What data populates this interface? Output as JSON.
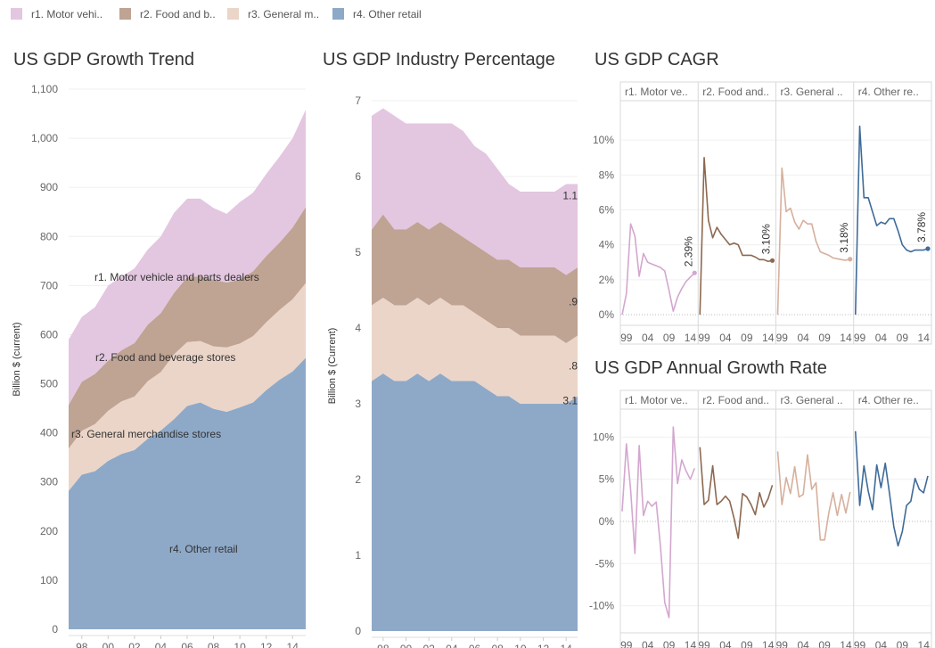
{
  "legend": [
    {
      "label": "r1. Motor vehi..",
      "color": "#e3c6e0"
    },
    {
      "label": "r2. Food and b..",
      "color": "#bfa393"
    },
    {
      "label": "r3. General m..",
      "color": "#ebd5c8"
    },
    {
      "label": "r4. Other retail",
      "color": "#8ea9c8"
    }
  ],
  "titles": {
    "trend": "US GDP Growth Trend",
    "pct": "US GDP Industry Percentage",
    "cagr": "US GDP CAGR",
    "agr": "US GDP Annual Growth Rate"
  },
  "chart_data": [
    {
      "type": "area",
      "stacked": true,
      "title": "US GDP Growth Trend",
      "ylabel": "Billion $ (current)",
      "ylim": [
        0,
        1100
      ],
      "yticks": [
        0,
        100,
        200,
        300,
        400,
        500,
        600,
        700,
        800,
        900,
        1000,
        1100
      ],
      "ytick_labels": [
        "0",
        "100",
        "200",
        "300",
        "400",
        "500",
        "600",
        "700",
        "800",
        "900",
        "1,000",
        "1,100"
      ],
      "x": [
        1997,
        1998,
        1999,
        2000,
        2001,
        2002,
        2003,
        2004,
        2005,
        2006,
        2007,
        2008,
        2009,
        2010,
        2011,
        2012,
        2013,
        2014,
        2015
      ],
      "xtick_values": [
        1998,
        2000,
        2002,
        2004,
        2006,
        2008,
        2010,
        2012,
        2014
      ],
      "xtick_labels": [
        "98",
        "00",
        "02",
        "04",
        "06",
        "08",
        "10",
        "12",
        "14"
      ],
      "series_labels": [
        "r1. Motor vehicle and parts dealers",
        "r2. Food and beverage stores",
        "r3. General merchandise stores",
        "r4. Other retail"
      ],
      "cumulative": [
        [
          282,
          315,
          322,
          343,
          357,
          365,
          388,
          405,
          428,
          455,
          462,
          449,
          443,
          452,
          462,
          487,
          508,
          525,
          553
        ],
        [
          368,
          404,
          418,
          445,
          464,
          474,
          505,
          524,
          560,
          585,
          587,
          576,
          574,
          582,
          597,
          625,
          650,
          672,
          705
        ],
        [
          457,
          504,
          520,
          547,
          568,
          583,
          620,
          644,
          685,
          717,
          719,
          712,
          706,
          712,
          729,
          760,
          787,
          818,
          860
        ],
        [
          590,
          636,
          656,
          700,
          718,
          735,
          773,
          800,
          848,
          877,
          877,
          858,
          846,
          870,
          889,
          927,
          962,
          1000,
          1058
        ]
      ]
    },
    {
      "type": "area",
      "stacked": true,
      "title": "US GDP Industry Percentage",
      "ylabel": "Billion $ (Current)",
      "ylim": [
        0,
        7
      ],
      "yticks": [
        0,
        1,
        2,
        3,
        4,
        5,
        6,
        7
      ],
      "x": [
        1997,
        1998,
        1999,
        2000,
        2001,
        2002,
        2003,
        2004,
        2005,
        2006,
        2007,
        2008,
        2009,
        2010,
        2011,
        2012,
        2013,
        2014,
        2015
      ],
      "xtick_values": [
        1998,
        2000,
        2002,
        2004,
        2006,
        2008,
        2010,
        2012,
        2014
      ],
      "xtick_labels": [
        "98",
        "00",
        "02",
        "04",
        "06",
        "08",
        "10",
        "12",
        "14"
      ],
      "end_labels": [
        "3.1",
        ".8",
        ".9",
        "1.1"
      ],
      "cumulative": [
        [
          3.3,
          3.4,
          3.3,
          3.3,
          3.4,
          3.3,
          3.4,
          3.3,
          3.3,
          3.3,
          3.2,
          3.1,
          3.1,
          3.0,
          3.0,
          3.0,
          3.0,
          3.0,
          3.1
        ],
        [
          4.3,
          4.4,
          4.3,
          4.3,
          4.4,
          4.3,
          4.4,
          4.3,
          4.3,
          4.2,
          4.1,
          4.0,
          4.0,
          3.9,
          3.9,
          3.9,
          3.9,
          3.8,
          3.9
        ],
        [
          5.3,
          5.5,
          5.3,
          5.3,
          5.4,
          5.3,
          5.4,
          5.3,
          5.2,
          5.1,
          5.0,
          4.9,
          4.9,
          4.8,
          4.8,
          4.8,
          4.8,
          4.7,
          4.8
        ],
        [
          6.8,
          6.9,
          6.8,
          6.7,
          6.7,
          6.7,
          6.7,
          6.7,
          6.6,
          6.4,
          6.3,
          6.1,
          5.9,
          5.8,
          5.8,
          5.8,
          5.8,
          5.9,
          5.9
        ]
      ]
    },
    {
      "type": "line",
      "title": "US GDP CAGR",
      "ylim": [
        0,
        12
      ],
      "yticks": [
        0,
        2,
        4,
        6,
        8,
        10
      ],
      "ytick_labels": [
        "0%",
        "2%",
        "4%",
        "6%",
        "8%",
        "10%"
      ],
      "x": [
        1998,
        1999,
        2000,
        2001,
        2002,
        2003,
        2004,
        2005,
        2006,
        2007,
        2008,
        2009,
        2010,
        2011,
        2012,
        2013,
        2014,
        2015
      ],
      "xtick_values": [
        1999,
        2004,
        2009,
        2014
      ],
      "xtick_labels": [
        "99",
        "04",
        "09",
        "14"
      ],
      "panels": [
        {
          "header": "r1. Motor ve..",
          "color": "#d3a7cf",
          "values": [
            0,
            1.2,
            5.2,
            4.5,
            2.2,
            3.5,
            3.0,
            2.9,
            2.8,
            2.7,
            2.5,
            1.4,
            0.2,
            1.0,
            1.5,
            1.9,
            2.15,
            2.39
          ],
          "end_label": "2.39%"
        },
        {
          "header": "r2. Food and..",
          "color": "#8d6850",
          "values": [
            0,
            9.0,
            5.4,
            4.4,
            5.0,
            4.6,
            4.3,
            4.0,
            4.1,
            4.0,
            3.4,
            3.4,
            3.4,
            3.3,
            3.15,
            3.15,
            3.05,
            3.1
          ],
          "end_label": "3.10%"
        },
        {
          "header": "r3. General ..",
          "color": "#d6b09d",
          "values": [
            0,
            8.4,
            5.9,
            6.1,
            5.3,
            4.9,
            5.4,
            5.2,
            5.2,
            4.2,
            3.6,
            3.5,
            3.4,
            3.25,
            3.2,
            3.15,
            3.12,
            3.18
          ],
          "end_label": "3.18%"
        },
        {
          "header": "r4. Other re..",
          "color": "#3f6b99",
          "values": [
            0,
            10.8,
            6.7,
            6.7,
            5.9,
            5.1,
            5.3,
            5.2,
            5.5,
            5.5,
            4.8,
            4.0,
            3.7,
            3.6,
            3.7,
            3.7,
            3.7,
            3.78
          ],
          "end_label": "3.78%"
        }
      ]
    },
    {
      "type": "line",
      "title": "US GDP Annual Growth Rate",
      "ylim": [
        -13,
        13
      ],
      "yticks": [
        -10,
        -5,
        0,
        5,
        10
      ],
      "ytick_labels": [
        "-10%",
        "-5%",
        "0%",
        "5%",
        "10%"
      ],
      "x": [
        1998,
        1999,
        2000,
        2001,
        2002,
        2003,
        2004,
        2005,
        2006,
        2007,
        2008,
        2009,
        2010,
        2011,
        2012,
        2013,
        2014,
        2015
      ],
      "xtick_values": [
        1999,
        2004,
        2009,
        2014
      ],
      "xtick_labels": [
        "99",
        "04",
        "09",
        "14"
      ],
      "panels": [
        {
          "header": "r1. Motor ve..",
          "color": "#d3a7cf",
          "values": [
            1.2,
            9.2,
            3.7,
            -3.8,
            9.0,
            0.7,
            2.4,
            1.8,
            2.3,
            -3.0,
            -9.6,
            -11.4,
            11.2,
            4.5,
            7.3,
            6.0,
            5.0,
            6.3
          ]
        },
        {
          "header": "r2. Food and..",
          "color": "#8d6850",
          "values": [
            8.8,
            2.0,
            2.5,
            6.6,
            2.0,
            2.4,
            3.0,
            2.4,
            0.4,
            -2.0,
            3.3,
            2.9,
            2.0,
            0.8,
            3.4,
            1.7,
            2.7,
            4.3
          ]
        },
        {
          "header": "r3. General ..",
          "color": "#d6b09d",
          "values": [
            8.3,
            2.0,
            5.2,
            3.3,
            6.5,
            2.9,
            3.2,
            7.9,
            3.8,
            4.6,
            -2.2,
            -2.2,
            1.0,
            3.4,
            0.7,
            3.2,
            1.0,
            3.5
          ]
        },
        {
          "header": "r4. Other re..",
          "color": "#3f6b99",
          "values": [
            10.7,
            1.9,
            6.6,
            3.6,
            1.4,
            6.7,
            4.0,
            6.9,
            3.3,
            -0.6,
            -2.9,
            -1.2,
            1.9,
            2.4,
            5.1,
            3.8,
            3.4,
            5.4
          ]
        }
      ]
    }
  ]
}
